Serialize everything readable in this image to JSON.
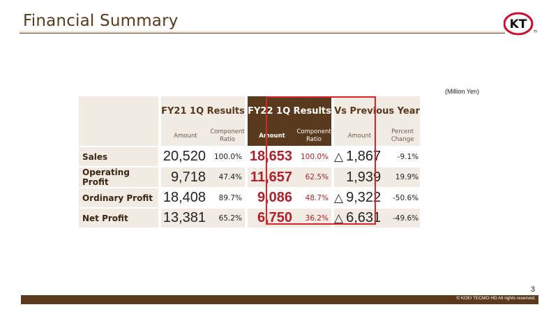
{
  "title": "Financial Summary",
  "logo_text": "KT",
  "logo_tm": "TM",
  "unit": "(Million Yen)",
  "headers": {
    "fy21": "FY21 1Q Results",
    "fy22": "FY22 1Q Results",
    "vs": "Vs Previous Year",
    "amount": "Amount",
    "component_ratio_1": "Component",
    "component_ratio_2": "Ratio",
    "percent_change_1": "Percent",
    "percent_change_2": "Change"
  },
  "rows": [
    {
      "label": "Sales",
      "fy21_amount": "20,520",
      "fy21_ratio": "100.0%",
      "fy22_amount": "18,653",
      "fy22_ratio": "100.0%",
      "vs_mark": "△",
      "vs_amount": "1,867",
      "vs_change": "-9.1%"
    },
    {
      "label": "Operating Profit",
      "fy21_amount": "9,718",
      "fy21_ratio": "47.4%",
      "fy22_amount": "11,657",
      "fy22_ratio": "62.5%",
      "vs_mark": "",
      "vs_amount": "1,939",
      "vs_change": "19.9%"
    },
    {
      "label": "Ordinary Profit",
      "fy21_amount": "18,408",
      "fy21_ratio": "89.7%",
      "fy22_amount": "9,086",
      "fy22_ratio": "48.7%",
      "vs_mark": "△",
      "vs_amount": "9,322",
      "vs_change": "-50.6%"
    },
    {
      "label": "Net Profit",
      "fy21_amount": "13,381",
      "fy21_ratio": "65.2%",
      "fy22_amount": "6,750",
      "fy22_ratio": "36.2%",
      "vs_mark": "△",
      "vs_amount": "6,631",
      "vs_change": "-49.6%"
    }
  ],
  "page_number": "3",
  "copyright": "© KOEI TECMO HD All rights reserved.",
  "colors": {
    "brand_brown": "#5a3a1c",
    "accent_red": "#a8232b",
    "highlight_border": "#d6262a",
    "light_beige": "#f1ebe3"
  }
}
